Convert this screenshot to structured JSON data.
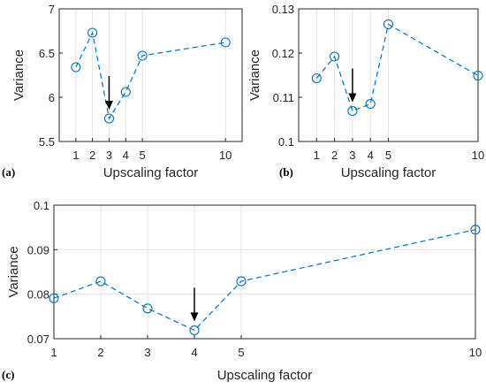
{
  "chart_data": [
    {
      "type": "line",
      "panel_label": "(a)",
      "x": [
        1,
        2,
        3,
        4,
        5,
        10
      ],
      "values": [
        6.34,
        6.73,
        5.76,
        6.06,
        6.47,
        6.62
      ],
      "xlabel": "Upscaling factor",
      "ylabel": "Variance",
      "xticks": [
        "1",
        "2",
        "3",
        "4",
        "5",
        "10"
      ],
      "yticks": [
        "5.5",
        "6",
        "6.5",
        "7"
      ],
      "xlim": [
        0,
        11
      ],
      "ylim": [
        5.5,
        7
      ],
      "grid": "vertical",
      "arrow_at_x": 3
    },
    {
      "type": "line",
      "panel_label": "(b)",
      "x": [
        1,
        2,
        3,
        4,
        5,
        10
      ],
      "values": [
        0.1143,
        0.1192,
        0.1069,
        0.1085,
        0.1265,
        0.1149
      ],
      "xlabel": "Upscaling factor",
      "ylabel": "Variance",
      "xticks": [
        "1",
        "2",
        "3",
        "4",
        "5",
        "10"
      ],
      "yticks": [
        "0.1",
        "0.11",
        "0.12",
        "0.13"
      ],
      "xlim": [
        0,
        10
      ],
      "ylim": [
        0.1,
        0.13
      ],
      "grid": "vertical",
      "arrow_at_x": 3
    },
    {
      "type": "line",
      "panel_label": "(c)",
      "x": [
        1,
        2,
        3,
        4,
        5,
        10
      ],
      "values": [
        0.0791,
        0.0829,
        0.0768,
        0.0719,
        0.0829,
        0.0945
      ],
      "xlabel": "Upscaling factor",
      "ylabel": "Variance",
      "xticks": [
        "1",
        "2",
        "3",
        "4",
        "5",
        "10"
      ],
      "yticks": [
        "0.07",
        "0.08",
        "0.09",
        "0.1"
      ],
      "xlim": [
        1,
        10
      ],
      "ylim": [
        0.07,
        0.1
      ],
      "grid": "both",
      "arrow_at_x": 4
    }
  ],
  "colors": {
    "series": "#0072BD",
    "axis": "#262626",
    "grid": "#e3e3e3",
    "arrow": "#000000"
  }
}
